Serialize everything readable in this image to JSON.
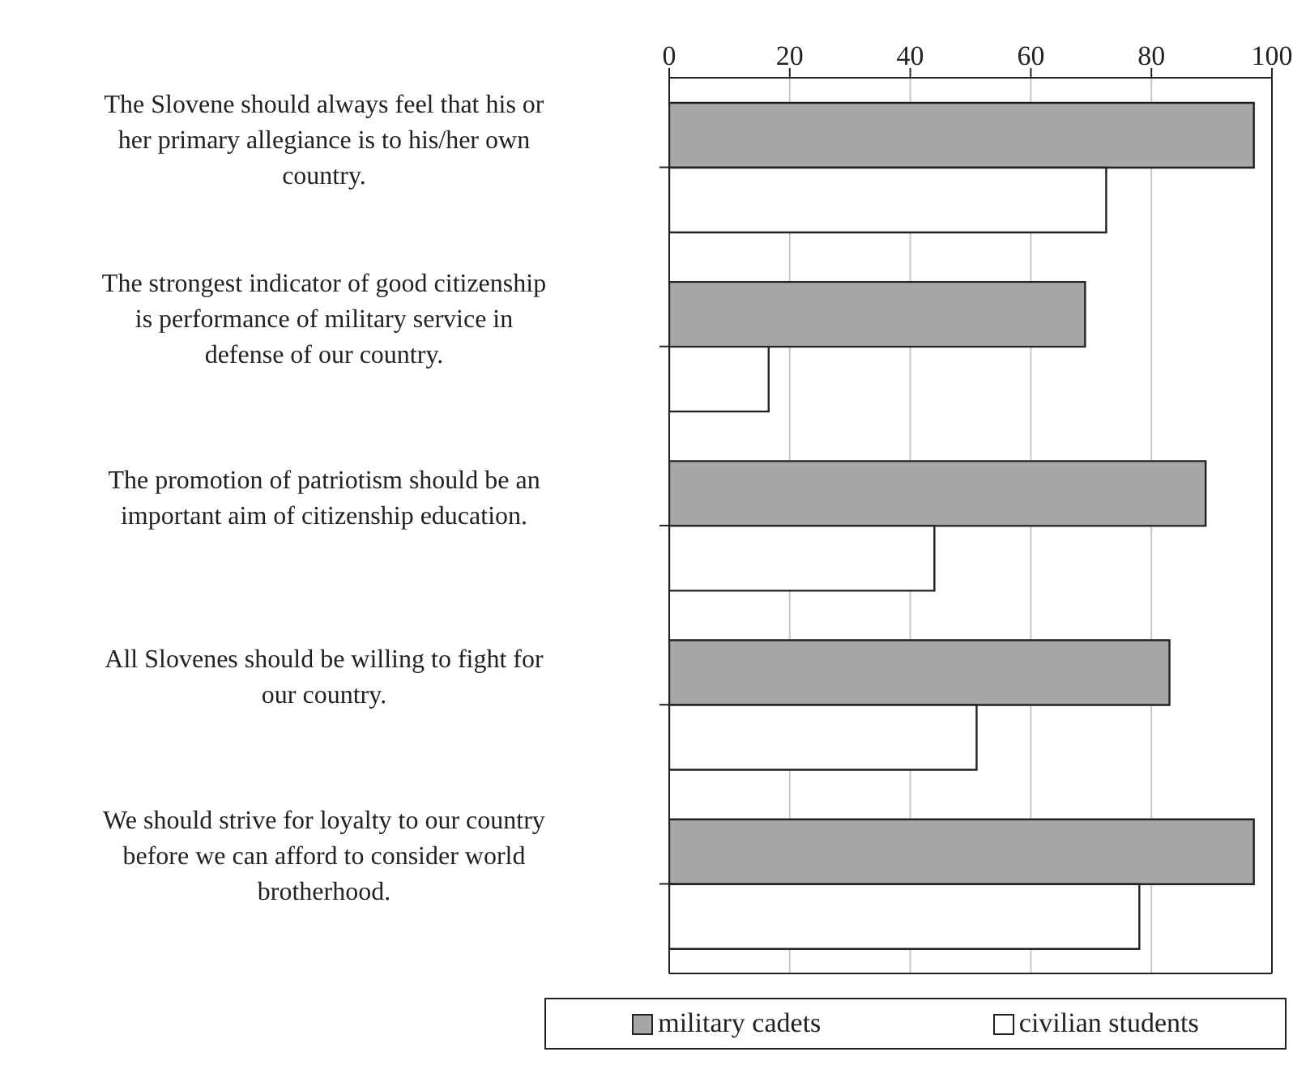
{
  "chart_data": {
    "type": "bar",
    "orientation": "horizontal",
    "categories": [
      "The Slovene should always feel that his or her primary allegiance is to his/her own country.",
      "The strongest indicator of good citizenship is performance of military service in defense of our country.",
      "The promotion of patriotism should be an important aim of citizenship education.",
      "All Slovenes should be willing to fight for our country.",
      "We should strive for loyalty to our country before we can afford to consider world brotherhood."
    ],
    "series": [
      {
        "name": "military cadets",
        "color": "#a6a7a9",
        "values": [
          97,
          69,
          89,
          83,
          97
        ]
      },
      {
        "name": "civilian students",
        "color": "#ffffff",
        "values": [
          72.5,
          16.5,
          44,
          51,
          78
        ]
      }
    ],
    "xlim": [
      0,
      100
    ],
    "xticks": [
      0,
      20,
      40,
      60,
      80,
      100
    ],
    "grid": "x",
    "legend": "bottom"
  }
}
